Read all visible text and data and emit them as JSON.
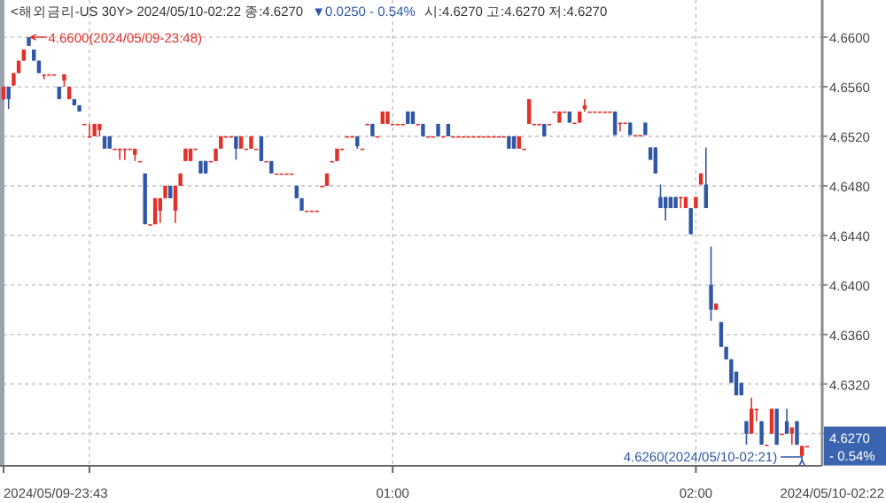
{
  "chart_data": {
    "type": "candlestick",
    "title": "<해외금리-US 30Y> 2024/05/10-02:22 종:4.6270",
    "subtitle": "시:4.6270 고:4.6270 저:4.6270",
    "annotations": [
      "▼0.0250  - 0.54%",
      {
        "text": "4.6600(2024/05/09-23:48)",
        "x": "2024-05-09T23:48",
        "y": 4.66
      },
      {
        "text": "4.6260(2024/05/10-02:21)",
        "x": "2024-05-10T02:21",
        "y": 4.626
      },
      "4.6270",
      "- 0.54%",
      "2024/05/10-02:22"
    ],
    "x": [
      "2024-05-09T23:43",
      "2024-05-09T23:44",
      "2024-05-09T23:45",
      "2024-05-09T23:46",
      "2024-05-09T23:47",
      "2024-05-09T23:48",
      "2024-05-09T23:49",
      "2024-05-09T23:50",
      "2024-05-09T23:51",
      "2024-05-09T23:52",
      "2024-05-09T23:53",
      "2024-05-09T23:54",
      "2024-05-09T23:55",
      "2024-05-09T23:56",
      "2024-05-09T23:57",
      "2024-05-09T23:58",
      "2024-05-09T23:59",
      "2024-05-10T00:00",
      "2024-05-10T00:01",
      "2024-05-10T00:02",
      "2024-05-10T00:03",
      "2024-05-10T00:04",
      "2024-05-10T00:05",
      "2024-05-10T00:06",
      "2024-05-10T00:07",
      "2024-05-10T00:08",
      "2024-05-10T00:09",
      "2024-05-10T00:10",
      "2024-05-10T00:11",
      "2024-05-10T00:12",
      "2024-05-10T00:13",
      "2024-05-10T00:14",
      "2024-05-10T00:15",
      "2024-05-10T00:16",
      "2024-05-10T00:17",
      "2024-05-10T00:18",
      "2024-05-10T00:19",
      "2024-05-10T00:20",
      "2024-05-10T00:21",
      "2024-05-10T00:22",
      "2024-05-10T00:23",
      "2024-05-10T00:24",
      "2024-05-10T00:25",
      "2024-05-10T00:26",
      "2024-05-10T00:27",
      "2024-05-10T00:28",
      "2024-05-10T00:29",
      "2024-05-10T00:30",
      "2024-05-10T00:31",
      "2024-05-10T00:32",
      "2024-05-10T00:33",
      "2024-05-10T00:34",
      "2024-05-10T00:35",
      "2024-05-10T00:36",
      "2024-05-10T00:37",
      "2024-05-10T00:38",
      "2024-05-10T00:39",
      "2024-05-10T00:40",
      "2024-05-10T00:41",
      "2024-05-10T00:42",
      "2024-05-10T00:43",
      "2024-05-10T00:44",
      "2024-05-10T00:45",
      "2024-05-10T00:46",
      "2024-05-10T00:47",
      "2024-05-10T00:48",
      "2024-05-10T00:49",
      "2024-05-10T00:50",
      "2024-05-10T00:51",
      "2024-05-10T00:52",
      "2024-05-10T00:53",
      "2024-05-10T00:54",
      "2024-05-10T00:55",
      "2024-05-10T00:56",
      "2024-05-10T00:57",
      "2024-05-10T00:58",
      "2024-05-10T00:59",
      "2024-05-10T01:00",
      "2024-05-10T01:01",
      "2024-05-10T01:02",
      "2024-05-10T01:03",
      "2024-05-10T01:04",
      "2024-05-10T01:05",
      "2024-05-10T01:06",
      "2024-05-10T01:07",
      "2024-05-10T01:08",
      "2024-05-10T01:09",
      "2024-05-10T01:10",
      "2024-05-10T01:11",
      "2024-05-10T01:12",
      "2024-05-10T01:13",
      "2024-05-10T01:14",
      "2024-05-10T01:15",
      "2024-05-10T01:16",
      "2024-05-10T01:17",
      "2024-05-10T01:18",
      "2024-05-10T01:19",
      "2024-05-10T01:20",
      "2024-05-10T01:21",
      "2024-05-10T01:22",
      "2024-05-10T01:23",
      "2024-05-10T01:24",
      "2024-05-10T01:25",
      "2024-05-10T01:26",
      "2024-05-10T01:27",
      "2024-05-10T01:28",
      "2024-05-10T01:29",
      "2024-05-10T01:30",
      "2024-05-10T01:31",
      "2024-05-10T01:32",
      "2024-05-10T01:33",
      "2024-05-10T01:34",
      "2024-05-10T01:35",
      "2024-05-10T01:36",
      "2024-05-10T01:37",
      "2024-05-10T01:38",
      "2024-05-10T01:39",
      "2024-05-10T01:40",
      "2024-05-10T01:41",
      "2024-05-10T01:42",
      "2024-05-10T01:43",
      "2024-05-10T01:44",
      "2024-05-10T01:45",
      "2024-05-10T01:46",
      "2024-05-10T01:47",
      "2024-05-10T01:48",
      "2024-05-10T01:49",
      "2024-05-10T01:50",
      "2024-05-10T01:51",
      "2024-05-10T01:52",
      "2024-05-10T01:53",
      "2024-05-10T01:54",
      "2024-05-10T01:55",
      "2024-05-10T01:56",
      "2024-05-10T01:57",
      "2024-05-10T01:58",
      "2024-05-10T01:59",
      "2024-05-10T02:00",
      "2024-05-10T02:01",
      "2024-05-10T02:02",
      "2024-05-10T02:03",
      "2024-05-10T02:04",
      "2024-05-10T02:05",
      "2024-05-10T02:06",
      "2024-05-10T02:07",
      "2024-05-10T02:08",
      "2024-05-10T02:09",
      "2024-05-10T02:10",
      "2024-05-10T02:11",
      "2024-05-10T02:12",
      "2024-05-10T02:13",
      "2024-05-10T02:14",
      "2024-05-10T02:15",
      "2024-05-10T02:16",
      "2024-05-10T02:17",
      "2024-05-10T02:18",
      "2024-05-10T02:19",
      "2024-05-10T02:20",
      "2024-05-10T02:21",
      "2024-05-10T02:22"
    ],
    "ohlc": [
      [
        4.655,
        4.656,
        4.6549,
        4.656
      ],
      [
        4.656,
        4.656,
        4.6542,
        4.655
      ],
      [
        4.6561,
        4.6571,
        4.6561,
        4.6571
      ],
      [
        4.6571,
        4.6581,
        4.6571,
        4.6581
      ],
      [
        4.6581,
        4.659,
        4.6581,
        4.659
      ],
      [
        4.66,
        4.66,
        4.6593,
        4.6593
      ],
      [
        4.659,
        4.659,
        4.6581,
        4.6581
      ],
      [
        4.6581,
        4.6581,
        4.6571,
        4.6571
      ],
      [
        4.657,
        4.657,
        4.6566,
        4.657
      ],
      [
        4.657,
        4.657,
        4.657,
        4.657
      ],
      [
        4.657,
        4.657,
        4.657,
        4.657
      ],
      [
        4.656,
        4.656,
        4.655,
        4.655
      ],
      [
        4.6565,
        4.657,
        4.656,
        4.657
      ],
      [
        4.655,
        4.656,
        4.655,
        4.656
      ],
      [
        4.655,
        4.655,
        4.6545,
        4.6545
      ],
      [
        4.6545,
        4.6545,
        4.654,
        4.654
      ],
      [
        4.653,
        4.653,
        4.653,
        4.653
      ],
      [
        4.652,
        4.653,
        4.652,
        4.652
      ],
      [
        4.652,
        4.653,
        4.652,
        4.653
      ],
      [
        4.6525,
        4.653,
        4.652,
        4.653
      ],
      [
        4.652,
        4.652,
        4.651,
        4.651
      ],
      [
        4.652,
        4.652,
        4.651,
        4.651
      ],
      [
        4.651,
        4.651,
        4.651,
        4.651
      ],
      [
        4.651,
        4.651,
        4.6501,
        4.651
      ],
      [
        4.651,
        4.651,
        4.6501,
        4.651
      ],
      [
        4.651,
        4.651,
        4.651,
        4.651
      ],
      [
        4.6505,
        4.651,
        4.65,
        4.651
      ],
      [
        4.65,
        4.65,
        4.65,
        4.65
      ],
      [
        4.649,
        4.649,
        4.6449,
        4.6449
      ],
      [
        4.6449,
        4.6449,
        4.6449,
        4.6449
      ],
      [
        4.6449,
        4.647,
        4.6449,
        4.647
      ],
      [
        4.646,
        4.647,
        4.645,
        4.647
      ],
      [
        4.647,
        4.648,
        4.647,
        4.648
      ],
      [
        4.648,
        4.648,
        4.647,
        4.647
      ],
      [
        4.646,
        4.648,
        4.645,
        4.648
      ],
      [
        4.648,
        4.649,
        4.648,
        4.649
      ],
      [
        4.65,
        4.651,
        4.65,
        4.651
      ],
      [
        4.65,
        4.651,
        4.65,
        4.651
      ],
      [
        4.651,
        4.651,
        4.651,
        4.651
      ],
      [
        4.65,
        4.65,
        4.649,
        4.649
      ],
      [
        4.65,
        4.65,
        4.649,
        4.649
      ],
      [
        4.65,
        4.65,
        4.65,
        4.65
      ],
      [
        4.65,
        4.651,
        4.65,
        4.651
      ],
      [
        4.651,
        4.652,
        4.651,
        4.652
      ],
      [
        4.652,
        4.652,
        4.652,
        4.652
      ],
      [
        4.652,
        4.652,
        4.652,
        4.652
      ],
      [
        4.652,
        4.652,
        4.6501,
        4.651
      ],
      [
        4.651,
        4.652,
        4.651,
        4.652
      ],
      [
        4.651,
        4.651,
        4.651,
        4.651
      ],
      [
        4.651,
        4.652,
        4.651,
        4.652
      ],
      [
        4.651,
        4.651,
        4.651,
        4.651
      ],
      [
        4.652,
        4.652,
        4.65,
        4.65
      ],
      [
        4.65,
        4.65,
        4.65,
        4.65
      ],
      [
        4.65,
        4.65,
        4.649,
        4.649
      ],
      [
        4.649,
        4.649,
        4.649,
        4.649
      ],
      [
        4.649,
        4.649,
        4.649,
        4.649
      ],
      [
        4.649,
        4.649,
        4.649,
        4.649
      ],
      [
        4.649,
        4.649,
        4.649,
        4.649
      ],
      [
        4.648,
        4.648,
        4.647,
        4.647
      ],
      [
        4.647,
        4.647,
        4.646,
        4.646
      ],
      [
        4.646,
        4.646,
        4.646,
        4.646
      ],
      [
        4.646,
        4.646,
        4.646,
        4.646
      ],
      [
        4.646,
        4.646,
        4.646,
        4.646
      ],
      [
        4.648,
        4.648,
        4.648,
        4.648
      ],
      [
        4.648,
        4.649,
        4.648,
        4.649
      ],
      [
        4.65,
        4.65,
        4.65,
        4.65
      ],
      [
        4.65,
        4.651,
        4.65,
        4.651
      ],
      [
        4.651,
        4.651,
        4.651,
        4.651
      ],
      [
        4.652,
        4.652,
        4.652,
        4.652
      ],
      [
        4.652,
        4.652,
        4.652,
        4.652
      ],
      [
        4.652,
        4.652,
        4.651,
        4.6512
      ],
      [
        4.651,
        4.651,
        4.651,
        4.651
      ],
      [
        4.653,
        4.653,
        4.653,
        4.653
      ],
      [
        4.653,
        4.653,
        4.652,
        4.652
      ],
      [
        4.652,
        4.652,
        4.652,
        4.652
      ],
      [
        4.653,
        4.654,
        4.653,
        4.654
      ],
      [
        4.653,
        4.654,
        4.653,
        4.654
      ],
      [
        4.653,
        4.653,
        4.653,
        4.653
      ],
      [
        4.653,
        4.653,
        4.653,
        4.653
      ],
      [
        4.653,
        4.653,
        4.653,
        4.653
      ],
      [
        4.654,
        4.654,
        4.653,
        4.653
      ],
      [
        4.654,
        4.654,
        4.653,
        4.653
      ],
      [
        4.653,
        4.653,
        4.653,
        4.653
      ],
      [
        4.653,
        4.653,
        4.652,
        4.652
      ],
      [
        4.652,
        4.652,
        4.652,
        4.652
      ],
      [
        4.652,
        4.652,
        4.652,
        4.652
      ],
      [
        4.653,
        4.653,
        4.652,
        4.652
      ],
      [
        4.652,
        4.652,
        4.652,
        4.652
      ],
      [
        4.653,
        4.653,
        4.652,
        4.652
      ],
      [
        4.652,
        4.652,
        4.652,
        4.652
      ],
      [
        4.652,
        4.652,
        4.652,
        4.652
      ],
      [
        4.652,
        4.652,
        4.652,
        4.652
      ],
      [
        4.652,
        4.652,
        4.652,
        4.652
      ],
      [
        4.652,
        4.652,
        4.652,
        4.652
      ],
      [
        4.652,
        4.652,
        4.652,
        4.652
      ],
      [
        4.652,
        4.652,
        4.652,
        4.652
      ],
      [
        4.652,
        4.652,
        4.652,
        4.652
      ],
      [
        4.652,
        4.652,
        4.652,
        4.652
      ],
      [
        4.652,
        4.652,
        4.652,
        4.652
      ],
      [
        4.652,
        4.652,
        4.652,
        4.652
      ],
      [
        4.652,
        4.652,
        4.651,
        4.651
      ],
      [
        4.652,
        4.652,
        4.651,
        4.651
      ],
      [
        4.651,
        4.652,
        4.651,
        4.652
      ],
      [
        4.651,
        4.651,
        4.651,
        4.651
      ],
      [
        4.653,
        4.655,
        4.653,
        4.655
      ],
      [
        4.653,
        4.653,
        4.653,
        4.653
      ],
      [
        4.653,
        4.653,
        4.653,
        4.653
      ],
      [
        4.653,
        4.653,
        4.652,
        4.652
      ],
      [
        4.653,
        4.653,
        4.653,
        4.653
      ],
      [
        4.654,
        4.654,
        4.654,
        4.654
      ],
      [
        4.6531,
        4.654,
        4.6531,
        4.654
      ],
      [
        4.654,
        4.654,
        4.654,
        4.654
      ],
      [
        4.654,
        4.654,
        4.6531,
        4.6531
      ],
      [
        4.6531,
        4.6531,
        4.6531,
        4.6531
      ],
      [
        4.6531,
        4.654,
        4.6531,
        4.654
      ],
      [
        4.6542,
        4.655,
        4.654,
        4.6545
      ],
      [
        4.654,
        4.654,
        4.654,
        4.654
      ],
      [
        4.654,
        4.654,
        4.654,
        4.654
      ],
      [
        4.654,
        4.654,
        4.654,
        4.654
      ],
      [
        4.654,
        4.654,
        4.654,
        4.654
      ],
      [
        4.654,
        4.654,
        4.654,
        4.654
      ],
      [
        4.654,
        4.654,
        4.6521,
        4.6521
      ],
      [
        4.6531,
        4.6531,
        4.6524,
        4.6531
      ],
      [
        4.6531,
        4.6531,
        4.6531,
        4.6531
      ],
      [
        4.6531,
        4.6531,
        4.6521,
        4.6521
      ],
      [
        4.6521,
        4.6521,
        4.6521,
        4.6521
      ],
      [
        4.6521,
        4.6521,
        4.6521,
        4.6521
      ],
      [
        4.6531,
        4.6531,
        4.6521,
        4.6521
      ],
      [
        4.6511,
        4.6511,
        4.6501,
        4.6501
      ],
      [
        4.6511,
        4.6511,
        4.649,
        4.649
      ],
      [
        4.6471,
        4.6481,
        4.6462,
        4.6462
      ],
      [
        4.6471,
        4.6471,
        4.6452,
        4.6462
      ],
      [
        4.6471,
        4.6471,
        4.6462,
        4.6462
      ],
      [
        4.6471,
        4.6471,
        4.6462,
        4.6462
      ],
      [
        4.6471,
        4.6471,
        4.6462,
        4.6471
      ],
      [
        4.6462,
        4.6471,
        4.6462,
        4.6471
      ],
      [
        4.6462,
        4.6462,
        4.6441,
        4.6441
      ],
      [
        4.6462,
        4.6471,
        4.6462,
        4.6471
      ],
      [
        4.6481,
        4.649,
        4.6481,
        4.649
      ],
      [
        4.6481,
        4.6511,
        4.6462,
        4.6462
      ],
      [
        4.64,
        4.6431,
        4.6371,
        4.638
      ],
      [
        4.638,
        4.6385,
        4.638,
        4.6385
      ],
      [
        4.637,
        4.637,
        4.635,
        4.635
      ],
      [
        4.635,
        4.635,
        4.634,
        4.634
      ],
      [
        4.634,
        4.634,
        4.6321,
        4.6321
      ],
      [
        4.633,
        4.633,
        4.6311,
        4.6311
      ],
      [
        4.6321,
        4.6321,
        4.6311,
        4.6311
      ],
      [
        4.629,
        4.629,
        4.6271,
        4.628
      ],
      [
        4.628,
        4.6309,
        4.628,
        4.63
      ],
      [
        4.63,
        4.63,
        4.629,
        4.63
      ],
      [
        4.629,
        4.629,
        4.6271,
        4.6271
      ],
      [
        4.6271,
        4.6271,
        4.6271,
        4.6271
      ],
      [
        4.628,
        4.63,
        4.628,
        4.63
      ],
      [
        4.63,
        4.63,
        4.6271,
        4.6271
      ],
      [
        4.628,
        4.628,
        4.628,
        4.628
      ],
      [
        4.629,
        4.63,
        4.628,
        4.628
      ],
      [
        4.628,
        4.6285,
        4.6271,
        4.6285
      ],
      [
        4.629,
        4.629,
        4.6271,
        4.6271
      ],
      [
        4.6262,
        4.627,
        4.626,
        4.627
      ],
      [
        4.627,
        4.627,
        4.627,
        4.627
      ]
    ],
    "colors": [
      "#e2302a",
      "#2f57a5",
      "#e2302a",
      "#e2302a",
      "#e2302a",
      "#2f57a5",
      "#2f57a5",
      "#2f57a5",
      "#e2302a",
      "#e2302a",
      "#e2302a",
      "#2f57a5",
      "#e2302a",
      "#e2302a",
      "#2f57a5",
      "#2f57a5",
      "#e2302a",
      "#e2302a",
      "#e2302a",
      "#e2302a",
      "#2f57a5",
      "#2f57a5",
      "#e2302a",
      "#e2302a",
      "#e2302a",
      "#e2302a",
      "#e2302a",
      "#e2302a",
      "#2f57a5",
      "#e2302a",
      "#e2302a",
      "#e2302a",
      "#e2302a",
      "#2f57a5",
      "#e2302a",
      "#e2302a",
      "#e2302a",
      "#e2302a",
      "#e2302a",
      "#2f57a5",
      "#2f57a5",
      "#e2302a",
      "#e2302a",
      "#e2302a",
      "#e2302a",
      "#e2302a",
      "#2f57a5",
      "#e2302a",
      "#e2302a",
      "#e2302a",
      "#e2302a",
      "#2f57a5",
      "#e2302a",
      "#2f57a5",
      "#e2302a",
      "#e2302a",
      "#e2302a",
      "#e2302a",
      "#2f57a5",
      "#2f57a5",
      "#e2302a",
      "#e2302a",
      "#e2302a",
      "#e2302a",
      "#e2302a",
      "#e2302a",
      "#e2302a",
      "#e2302a",
      "#e2302a",
      "#e2302a",
      "#2f57a5",
      "#e2302a",
      "#e2302a",
      "#2f57a5",
      "#e2302a",
      "#e2302a",
      "#e2302a",
      "#e2302a",
      "#e2302a",
      "#e2302a",
      "#2f57a5",
      "#2f57a5",
      "#e2302a",
      "#2f57a5",
      "#e2302a",
      "#e2302a",
      "#2f57a5",
      "#e2302a",
      "#2f57a5",
      "#e2302a",
      "#e2302a",
      "#e2302a",
      "#e2302a",
      "#e2302a",
      "#e2302a",
      "#e2302a",
      "#e2302a",
      "#e2302a",
      "#e2302a",
      "#e2302a",
      "#2f57a5",
      "#2f57a5",
      "#e2302a",
      "#e2302a",
      "#e2302a",
      "#e2302a",
      "#e2302a",
      "#2f57a5",
      "#e2302a",
      "#e2302a",
      "#e2302a",
      "#e2302a",
      "#2f57a5",
      "#e2302a",
      "#e2302a",
      "#e2302a",
      "#e2302a",
      "#e2302a",
      "#e2302a",
      "#e2302a",
      "#e2302a",
      "#2f57a5",
      "#e2302a",
      "#e2302a",
      "#2f57a5",
      "#e2302a",
      "#e2302a",
      "#2f57a5",
      "#2f57a5",
      "#2f57a5",
      "#2f57a5",
      "#2f57a5",
      "#2f57a5",
      "#2f57a5",
      "#e2302a",
      "#e2302a",
      "#2f57a5",
      "#e2302a",
      "#e2302a",
      "#2f57a5",
      "#2f57a5",
      "#e2302a",
      "#2f57a5",
      "#2f57a5",
      "#2f57a5",
      "#2f57a5",
      "#2f57a5",
      "#2f57a5",
      "#e2302a",
      "#e2302a",
      "#2f57a5",
      "#e2302a",
      "#e2302a",
      "#2f57a5",
      "#e2302a",
      "#2f57a5",
      "#e2302a",
      "#2f57a5",
      "#e2302a",
      "#e2302a"
    ],
    "xlim": [
      "2024-05-09T23:43",
      "2024-05-10T02:25"
    ],
    "xticks": [
      {
        "value": "2024-05-09T23:43",
        "label": "2024/05/09-23:43"
      },
      {
        "value": "2024-05-10T00:00",
        "label": null
      },
      {
        "value": "2024-05-10T01:00",
        "label": "01:00"
      },
      {
        "value": "2024-05-10T02:00",
        "label": "02:00"
      }
    ],
    "ylim": [
      4.6254,
      4.663
    ],
    "yticks": [
      {
        "value": 4.66,
        "label": "4.6600"
      },
      {
        "value": 4.656,
        "label": "4.6560"
      },
      {
        "value": 4.652,
        "label": "4.6520"
      },
      {
        "value": 4.648,
        "label": "4.6480"
      },
      {
        "value": 4.644,
        "label": "4.6440"
      },
      {
        "value": 4.64,
        "label": "4.6400"
      },
      {
        "value": 4.636,
        "label": "4.6360"
      },
      {
        "value": 4.632,
        "label": "4.6320"
      },
      {
        "value": 4.628,
        "label": null
      }
    ],
    "grid": true
  }
}
